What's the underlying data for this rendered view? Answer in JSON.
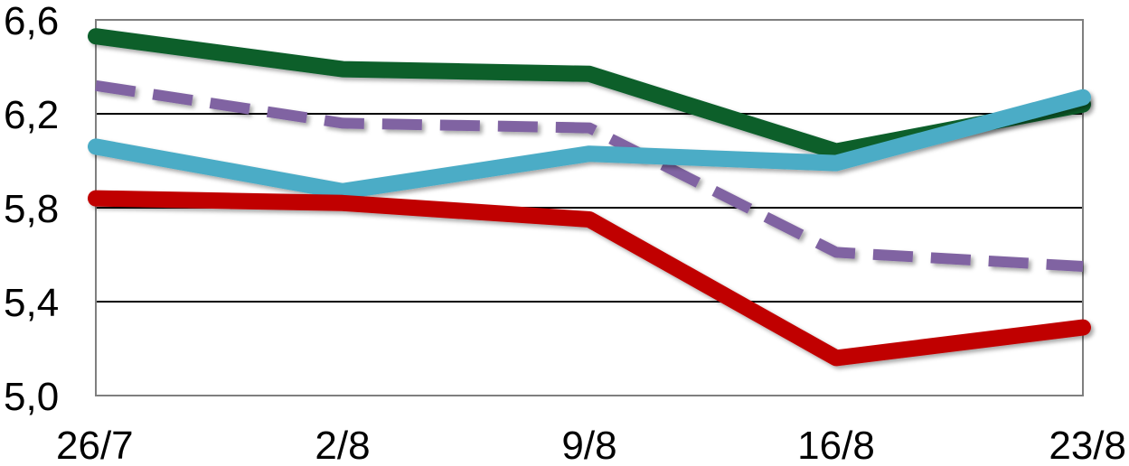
{
  "chart_data": {
    "type": "line",
    "title": "",
    "xlabel": "",
    "ylabel": "",
    "categories": [
      "26/7",
      "2/8",
      "9/8",
      "16/8",
      "23/8"
    ],
    "ylim": [
      5.0,
      6.6
    ],
    "yticks": [
      5.0,
      5.4,
      5.8,
      6.2,
      6.6
    ],
    "ytick_labels": [
      "5,0",
      "5,4",
      "5,8",
      "6,2",
      "6,6"
    ],
    "grid": "horizontal",
    "legend": "none",
    "series": [
      {
        "color": "#075e2c",
        "style": "solid",
        "values": [
          6.53,
          6.39,
          6.37,
          6.04,
          6.24
        ]
      },
      {
        "color": "#8064a2",
        "style": "dashed",
        "values": [
          6.32,
          6.16,
          6.14,
          5.61,
          5.55
        ]
      },
      {
        "color": "#4bacc6",
        "style": "solid",
        "values": [
          6.06,
          5.87,
          6.03,
          5.99,
          6.27
        ]
      },
      {
        "color": "#c00000",
        "style": "solid",
        "values": [
          5.84,
          5.82,
          5.75,
          5.16,
          5.29
        ]
      }
    ]
  }
}
